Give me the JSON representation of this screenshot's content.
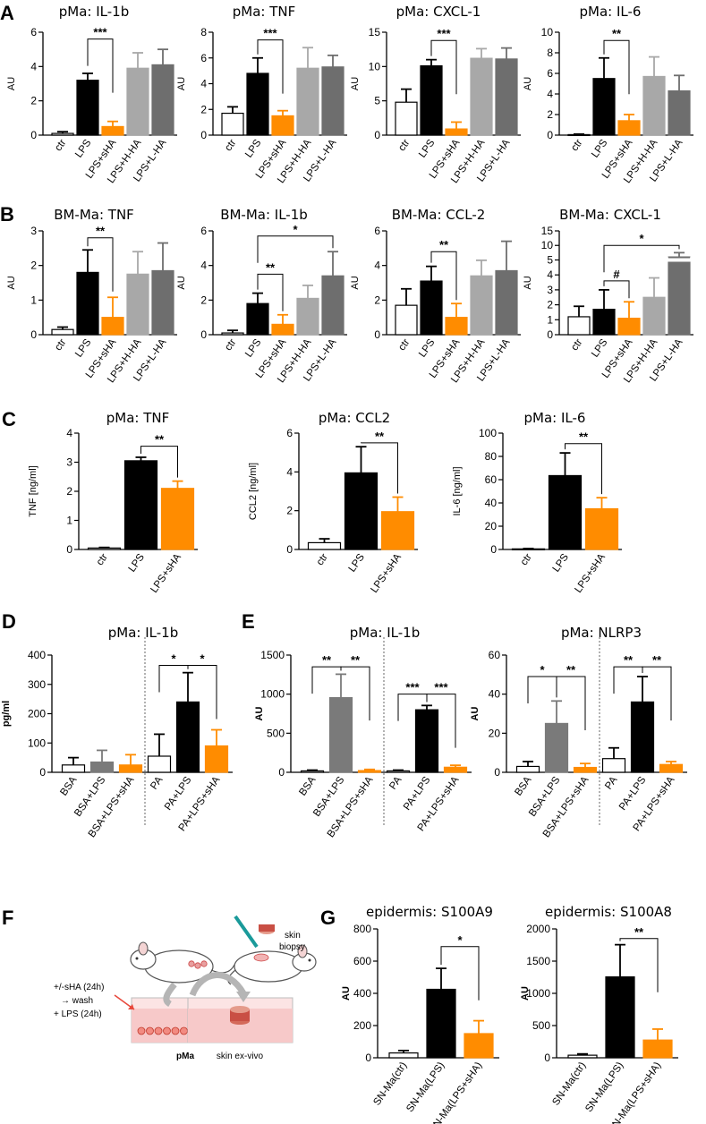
{
  "panels": {
    "A": "A",
    "B": "B",
    "C": "C",
    "D": "D",
    "E": "E",
    "F": "F",
    "G": "G"
  },
  "colors": {
    "ctr": "#ffffff",
    "lps": "#000000",
    "shA": "#ff8c00",
    "hha": "#a8a8a8",
    "lha": "#6e6e6e",
    "bsa": "#7a7a7a"
  },
  "chart_data": [
    {
      "id": "A1",
      "panel": "A",
      "type": "bar",
      "title": "pMa: IL-1b",
      "ylabel": "AU",
      "ylim": [
        0,
        6
      ],
      "yticks": [
        "0",
        "2",
        "4",
        "6"
      ],
      "categories": [
        "ctr",
        "LPS",
        "LPS+sHA",
        "LPS+H-HA",
        "LPS+L-HA"
      ],
      "values": [
        0.1,
        3.2,
        0.5,
        3.9,
        4.1
      ],
      "errors": [
        0.1,
        0.4,
        0.3,
        0.9,
        0.9
      ],
      "colors": [
        "ctr",
        "lps",
        "shA",
        "hha",
        "lha"
      ],
      "sig": [
        {
          "from": 1,
          "to": 2,
          "label": "***",
          "level": 5.6
        }
      ]
    },
    {
      "id": "A2",
      "panel": "A",
      "type": "bar",
      "title": "pMa: TNF",
      "ylabel": "AU",
      "ylim": [
        0,
        8
      ],
      "yticks": [
        "0",
        "2",
        "4",
        "6",
        "8"
      ],
      "categories": [
        "ctr",
        "LPS",
        "LPS+sHA",
        "LPS+H-HA",
        "LPS+L-HA"
      ],
      "values": [
        1.7,
        4.8,
        1.5,
        5.2,
        5.3
      ],
      "errors": [
        0.5,
        1.2,
        0.4,
        1.6,
        0.9
      ],
      "colors": [
        "ctr",
        "lps",
        "shA",
        "hha",
        "lha"
      ],
      "sig": [
        {
          "from": 1,
          "to": 2,
          "label": "***",
          "level": 7.4
        }
      ]
    },
    {
      "id": "A3",
      "panel": "A",
      "type": "bar",
      "title": "pMa: CXCL-1",
      "ylabel": "AU",
      "ylim": [
        0,
        15
      ],
      "yticks": [
        "0",
        "5",
        "10",
        "15"
      ],
      "categories": [
        "ctr",
        "LPS",
        "LPS+sHA",
        "LPS+H-HA",
        "LPS+L-HA"
      ],
      "values": [
        4.8,
        10.1,
        0.9,
        11.2,
        11.1
      ],
      "errors": [
        1.9,
        0.9,
        1.0,
        1.4,
        1.6
      ],
      "colors": [
        "ctr",
        "lps",
        "shA",
        "hha",
        "lha"
      ],
      "sig": [
        {
          "from": 1,
          "to": 2,
          "label": "***",
          "level": 13.8
        }
      ]
    },
    {
      "id": "A4",
      "panel": "A",
      "type": "bar",
      "title": "pMa: IL-6",
      "ylabel": "AU",
      "ylim": [
        0,
        10
      ],
      "yticks": [
        "0",
        "2",
        "4",
        "6",
        "8",
        "10"
      ],
      "categories": [
        "ctr",
        "LPS",
        "LPS+sHA",
        "LPS+H-HA",
        "LPS+L-HA"
      ],
      "values": [
        0.05,
        5.5,
        1.4,
        5.7,
        4.3
      ],
      "errors": [
        0.05,
        2.0,
        0.6,
        1.9,
        1.5
      ],
      "colors": [
        "ctr",
        "lps",
        "shA",
        "hha",
        "lha"
      ],
      "sig": [
        {
          "from": 1,
          "to": 2,
          "label": "**",
          "level": 9.2
        }
      ]
    },
    {
      "id": "B1",
      "panel": "B",
      "type": "bar",
      "title": "BM-Ma: TNF",
      "ylabel": "AU",
      "ylim": [
        0,
        3
      ],
      "yticks": [
        "0",
        "1",
        "2",
        "3"
      ],
      "categories": [
        "ctr",
        "LPS",
        "LPS+sHA",
        "LPS+H-HA",
        "LPS+L-HA"
      ],
      "values": [
        0.15,
        1.8,
        0.5,
        1.75,
        1.85
      ],
      "errors": [
        0.07,
        0.65,
        0.58,
        0.65,
        0.8
      ],
      "colors": [
        "ctr",
        "lps",
        "shA",
        "hha",
        "lha"
      ],
      "sig": [
        {
          "from": 1,
          "to": 2,
          "label": "**",
          "level": 2.8
        }
      ]
    },
    {
      "id": "B2",
      "panel": "B",
      "type": "bar",
      "title": "BM-Ma: IL-1b",
      "ylabel": "AU",
      "ylim": [
        0,
        6
      ],
      "yticks": [
        "0",
        "2",
        "4",
        "6"
      ],
      "categories": [
        "ctr",
        "LPS",
        "LPS+sHA",
        "LPS+H-HA",
        "LPS+L-HA"
      ],
      "values": [
        0.1,
        1.8,
        0.6,
        2.1,
        3.4
      ],
      "errors": [
        0.15,
        0.6,
        0.55,
        0.75,
        1.4
      ],
      "colors": [
        "ctr",
        "lps",
        "shA",
        "hha",
        "lha"
      ],
      "sig": [
        {
          "from": 1,
          "to": 2,
          "label": "**",
          "level": 3.5
        },
        {
          "from": 1,
          "to": 4,
          "label": "*",
          "level": 5.7
        }
      ]
    },
    {
      "id": "B3",
      "panel": "B",
      "type": "bar",
      "title": "BM-Ma: CCL-2",
      "ylabel": "AU",
      "ylim": [
        0,
        6
      ],
      "yticks": [
        "0",
        "2",
        "4",
        "6"
      ],
      "categories": [
        "ctr",
        "LPS",
        "LPS+sHA",
        "LPS+H-HA",
        "LPS+L-HA"
      ],
      "values": [
        1.7,
        3.1,
        1.0,
        3.4,
        3.7
      ],
      "errors": [
        0.95,
        0.85,
        0.8,
        0.9,
        1.7
      ],
      "colors": [
        "ctr",
        "lps",
        "shA",
        "hha",
        "lha"
      ],
      "sig": [
        {
          "from": 1,
          "to": 2,
          "label": "**",
          "level": 4.8
        }
      ]
    },
    {
      "id": "B4",
      "panel": "B",
      "type": "bar",
      "title": "BM-Ma: CXCL-1",
      "ylabel": "AU",
      "ylim": [
        0,
        15
      ],
      "yticks": [
        "0",
        "1",
        "2",
        "3",
        "4",
        "5",
        "10",
        "15"
      ],
      "tickvalues": [
        0,
        1,
        2,
        3,
        4,
        5,
        10,
        15
      ],
      "broken": true,
      "categories": [
        "ctr",
        "LPS",
        "LPS+sHA",
        "LPS+H-HA",
        "LPS+L-HA"
      ],
      "values": [
        1.2,
        1.7,
        1.1,
        2.5,
        6.0
      ],
      "errors": [
        0.7,
        1.3,
        1.1,
        1.3,
        1.5
      ],
      "colors": [
        "ctr",
        "lps",
        "shA",
        "hha",
        "lha"
      ],
      "sig": [
        {
          "from": 1,
          "to": 2,
          "label": "#",
          "level": 3.6
        },
        {
          "from": 1,
          "to": 4,
          "label": "*",
          "level": 10.0
        }
      ]
    },
    {
      "id": "C1",
      "panel": "C",
      "type": "bar",
      "title": "pMa: TNF",
      "ylabel": "TNF [ng/ml]",
      "ylim": [
        0,
        4
      ],
      "yticks": [
        "0",
        "1",
        "2",
        "3",
        "4"
      ],
      "categories": [
        "ctr",
        "LPS",
        "LPS+sHA"
      ],
      "values": [
        0.05,
        3.05,
        2.1
      ],
      "errors": [
        0.02,
        0.12,
        0.25
      ],
      "colors": [
        "ctr",
        "lps",
        "shA"
      ],
      "sig": [
        {
          "from": 1,
          "to": 2,
          "label": "**",
          "level": 3.55
        }
      ]
    },
    {
      "id": "C2",
      "panel": "C",
      "type": "bar",
      "title": "pMa: CCL2",
      "ylabel": "CCL2 [ng/ml]",
      "ylim": [
        0,
        6
      ],
      "yticks": [
        "0",
        "2",
        "4",
        "6"
      ],
      "categories": [
        "ctr",
        "LPS",
        "LPS+sHA"
      ],
      "values": [
        0.35,
        3.95,
        1.95
      ],
      "errors": [
        0.2,
        1.35,
        0.75
      ],
      "colors": [
        "ctr",
        "lps",
        "shA"
      ],
      "sig": [
        {
          "from": 1,
          "to": 2,
          "label": "**",
          "level": 5.5
        }
      ]
    },
    {
      "id": "C3",
      "panel": "C",
      "type": "bar",
      "title": "pMa: IL-6",
      "ylabel": "IL-6 [ng/ml]",
      "ylim": [
        0,
        100
      ],
      "yticks": [
        "0",
        "20",
        "40",
        "60",
        "80",
        "100"
      ],
      "categories": [
        "ctr",
        "LPS",
        "LPS+sHA"
      ],
      "values": [
        0.5,
        63.5,
        35
      ],
      "errors": [
        0.3,
        19.5,
        9.5
      ],
      "colors": [
        "ctr",
        "lps",
        "shA"
      ],
      "sig": [
        {
          "from": 1,
          "to": 2,
          "label": "**",
          "level": 91
        }
      ]
    },
    {
      "id": "D1",
      "panel": "D",
      "type": "bar",
      "title": "pMa: IL-1b",
      "ylabel": "pg/ml",
      "ylim": [
        0,
        400
      ],
      "yticks": [
        "0",
        "100",
        "200",
        "300",
        "400"
      ],
      "categories": [
        "BSA",
        "BSA+LPS",
        "BSA+LPS+sHA",
        "PA",
        "PA+LPS",
        "PA+LPS+sHA"
      ],
      "values": [
        25,
        35,
        25,
        55,
        240,
        90
      ],
      "errors": [
        25,
        40,
        35,
        75,
        100,
        55
      ],
      "colors": [
        "ctr",
        "bsa",
        "shA",
        "ctr",
        "lps",
        "shA"
      ],
      "divider": 3,
      "sig": [
        {
          "from": 3,
          "to": 4,
          "label": "*",
          "level": 365
        },
        {
          "from": 4,
          "to": 5,
          "label": "*",
          "level": 365
        }
      ]
    },
    {
      "id": "E1",
      "panel": "E",
      "type": "bar",
      "title": "pMa: IL-1b",
      "ylabel": "AU",
      "ylim": [
        0,
        1500
      ],
      "yticks": [
        "0",
        "500",
        "1000",
        "1500"
      ],
      "categories": [
        "BSA",
        "BSA+LPS",
        "BSA+LPS+sHA",
        "PA",
        "PA+LPS",
        "PA+LPS+sHA"
      ],
      "values": [
        18,
        955,
        22,
        18,
        800,
        65
      ],
      "errors": [
        10,
        300,
        15,
        10,
        55,
        25
      ],
      "colors": [
        "ctr",
        "bsa",
        "shA",
        "ctr",
        "lps",
        "shA"
      ],
      "divider": 3,
      "sig": [
        {
          "from": 0,
          "to": 1,
          "label": "**",
          "level": 1350
        },
        {
          "from": 1,
          "to": 2,
          "label": "**",
          "level": 1350
        },
        {
          "from": 3,
          "to": 4,
          "label": "***",
          "level": 1000
        },
        {
          "from": 4,
          "to": 5,
          "label": "***",
          "level": 1000
        }
      ]
    },
    {
      "id": "E2",
      "panel": "E",
      "type": "bar",
      "title": "pMa: NLRP3",
      "ylabel": "AU",
      "ylim": [
        0,
        60
      ],
      "yticks": [
        "0",
        "20",
        "40",
        "60"
      ],
      "categories": [
        "BSA",
        "BSA+LPS",
        "BSA+LPS+sHA",
        "PA",
        "PA+LPS",
        "PA+LPS+sHA"
      ],
      "values": [
        3,
        25,
        2.5,
        7,
        36,
        4
      ],
      "errors": [
        2.5,
        11.5,
        2,
        5.5,
        13,
        1.5
      ],
      "colors": [
        "ctr",
        "bsa",
        "shA",
        "ctr",
        "lps",
        "shA"
      ],
      "divider": 3,
      "sig": [
        {
          "from": 0,
          "to": 1,
          "label": "*",
          "level": 49
        },
        {
          "from": 1,
          "to": 2,
          "label": "**",
          "level": 49
        },
        {
          "from": 3,
          "to": 4,
          "label": "**",
          "level": 54
        },
        {
          "from": 4,
          "to": 5,
          "label": "**",
          "level": 54
        }
      ]
    },
    {
      "id": "G1",
      "panel": "G",
      "type": "bar",
      "title": "epidermis: S100A9",
      "ylabel": "AU",
      "ylim": [
        0,
        800
      ],
      "yticks": [
        "0",
        "200",
        "400",
        "600",
        "800"
      ],
      "categories": [
        "SN-Ma(ctr)",
        "SN-Ma(LPS)",
        "SN-Ma(LPS+sHA)"
      ],
      "values": [
        30,
        425,
        150
      ],
      "errors": [
        15,
        130,
        80
      ],
      "colors": [
        "ctr",
        "lps",
        "shA"
      ],
      "sig": [
        {
          "from": 1,
          "to": 2,
          "label": "*",
          "level": 690
        }
      ]
    },
    {
      "id": "G2",
      "panel": "G",
      "type": "bar",
      "title": "epidermis: S100A8",
      "ylabel": "AU",
      "ylim": [
        0,
        2000
      ],
      "yticks": [
        "0",
        "500",
        "1000",
        "1500",
        "2000"
      ],
      "categories": [
        "SN-Ma(ctr)",
        "SN-Ma(LPS)",
        "SN-Ma(LPS+sHA)"
      ],
      "values": [
        40,
        1255,
        275
      ],
      "errors": [
        20,
        500,
        170
      ],
      "colors": [
        "ctr",
        "lps",
        "shA"
      ],
      "sig": [
        {
          "from": 1,
          "to": 2,
          "label": "**",
          "level": 1850
        }
      ]
    }
  ],
  "panelF": {
    "treatment_lines": [
      "+/-sHA (24h)",
      "→ wash",
      "+ LPS (24h)"
    ],
    "well_label_left": "pMa",
    "well_label_right": "skin ex-vivo",
    "biopsy_lines": [
      "skin",
      "biopsy"
    ]
  }
}
